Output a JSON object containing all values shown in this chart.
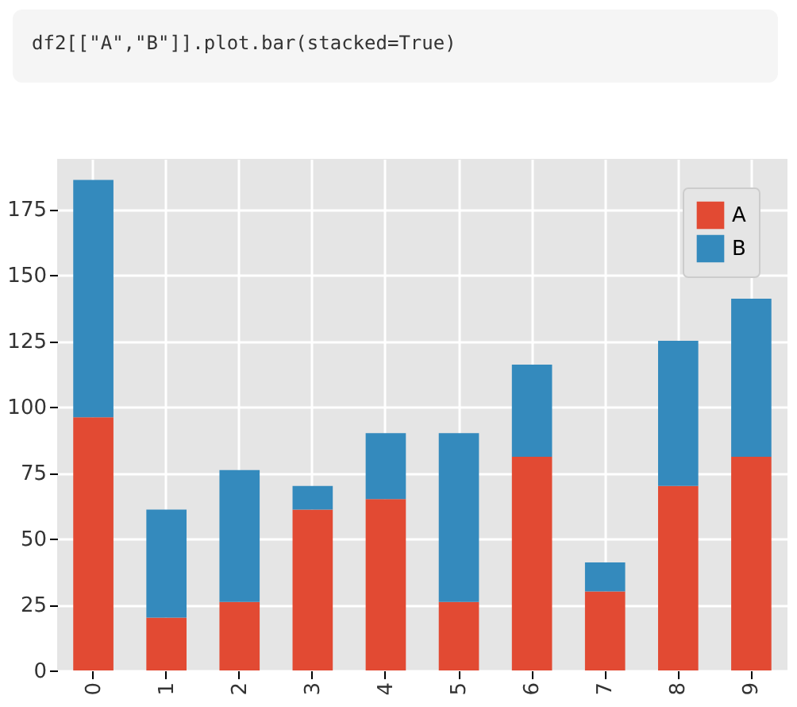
{
  "chart_data": {
    "type": "bar",
    "stacked": true,
    "annotations": [
      "df2[[\"A\",\"B\"]].plot.bar(stacked=True)"
    ],
    "categories": [
      "0",
      "1",
      "2",
      "3",
      "4",
      "5",
      "6",
      "7",
      "8",
      "9"
    ],
    "series": [
      {
        "name": "A",
        "color": "#e24a33",
        "values": [
          96,
          20,
          26,
          61,
          65,
          26,
          81,
          30,
          70,
          81
        ]
      },
      {
        "name": "B",
        "color": "#348abd",
        "values": [
          90,
          41,
          50,
          9,
          25,
          64,
          35,
          11,
          55,
          60
        ]
      }
    ],
    "ylim": [
      0,
      194
    ],
    "yticks": [
      0,
      25,
      50,
      75,
      100,
      125,
      150,
      175
    ],
    "grid": true,
    "legend": "top right"
  }
}
